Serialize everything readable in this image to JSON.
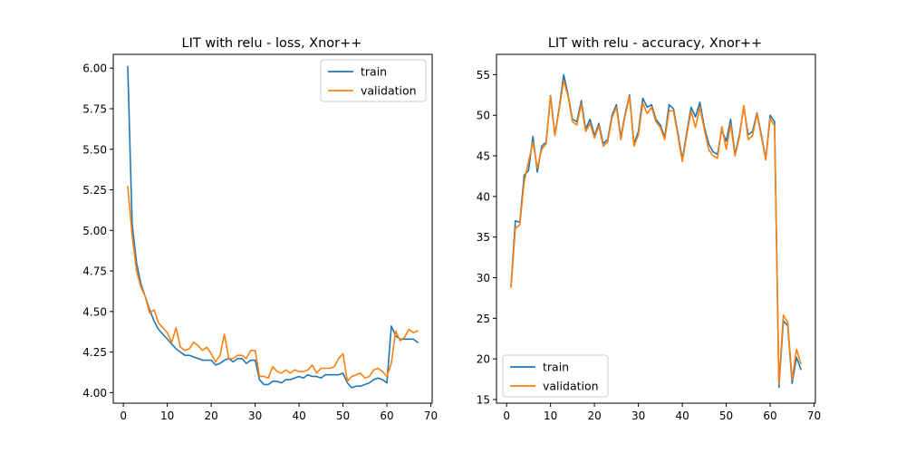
{
  "figure": {
    "background": "#ffffff"
  },
  "chart_data": [
    {
      "type": "line",
      "title": "LIT with relu - loss, Xnor++",
      "xlabel": "",
      "ylabel": "",
      "xlim": [
        -2.3,
        70.3
      ],
      "ylim": [
        3.935,
        6.085
      ],
      "xticks": [
        0,
        10,
        20,
        30,
        40,
        50,
        60,
        70
      ],
      "yticks": [
        4.0,
        4.25,
        4.5,
        4.75,
        5.0,
        5.25,
        5.5,
        5.75,
        6.0
      ],
      "ytick_labels": [
        "4.00",
        "4.25",
        "4.50",
        "4.75",
        "5.00",
        "5.25",
        "5.50",
        "5.75",
        "6.00"
      ],
      "grid": false,
      "legend_position": "upper right",
      "x": [
        1,
        2,
        3,
        4,
        5,
        6,
        7,
        8,
        9,
        10,
        11,
        12,
        13,
        14,
        15,
        16,
        17,
        18,
        19,
        20,
        21,
        22,
        23,
        24,
        25,
        26,
        27,
        28,
        29,
        30,
        31,
        32,
        33,
        34,
        35,
        36,
        37,
        38,
        39,
        40,
        41,
        42,
        43,
        44,
        45,
        46,
        47,
        48,
        49,
        50,
        51,
        52,
        53,
        54,
        55,
        56,
        57,
        58,
        59,
        60,
        61,
        62,
        63,
        64,
        65,
        66,
        67
      ],
      "series": [
        {
          "name": "train",
          "color": "#1f77b4",
          "values": [
            6.01,
            5.04,
            4.8,
            4.67,
            4.59,
            4.51,
            4.44,
            4.39,
            4.36,
            4.33,
            4.3,
            4.27,
            4.25,
            4.23,
            4.23,
            4.22,
            4.21,
            4.2,
            4.2,
            4.2,
            4.17,
            4.18,
            4.2,
            4.21,
            4.19,
            4.21,
            4.21,
            4.18,
            4.2,
            4.2,
            4.08,
            4.05,
            4.05,
            4.07,
            4.07,
            4.06,
            4.08,
            4.08,
            4.09,
            4.1,
            4.09,
            4.11,
            4.1,
            4.1,
            4.09,
            4.11,
            4.11,
            4.11,
            4.11,
            4.12,
            4.06,
            4.03,
            4.04,
            4.04,
            4.05,
            4.06,
            4.08,
            4.09,
            4.08,
            4.06,
            4.41,
            4.35,
            4.33,
            4.33,
            4.33,
            4.33,
            4.31
          ]
        },
        {
          "name": "validation",
          "color": "#ff7f0e",
          "values": [
            5.27,
            4.97,
            4.75,
            4.65,
            4.59,
            4.49,
            4.51,
            4.43,
            4.4,
            4.37,
            4.31,
            4.4,
            4.28,
            4.26,
            4.27,
            4.31,
            4.29,
            4.26,
            4.28,
            4.24,
            4.19,
            4.23,
            4.36,
            4.21,
            4.21,
            4.23,
            4.23,
            4.21,
            4.26,
            4.26,
            4.1,
            4.1,
            4.09,
            4.16,
            4.13,
            4.12,
            4.14,
            4.12,
            4.14,
            4.13,
            4.13,
            4.14,
            4.17,
            4.12,
            4.15,
            4.15,
            4.15,
            4.16,
            4.21,
            4.24,
            4.07,
            4.1,
            4.11,
            4.12,
            4.09,
            4.1,
            4.14,
            4.15,
            4.13,
            4.1,
            4.18,
            4.38,
            4.32,
            4.34,
            4.39,
            4.37,
            4.38
          ]
        }
      ]
    },
    {
      "type": "line",
      "title": "LIT with relu - accuracy, Xnor++",
      "xlabel": "",
      "ylabel": "",
      "xlim": [
        -2.3,
        70.3
      ],
      "ylim": [
        14.55,
        57.5
      ],
      "xticks": [
        0,
        10,
        20,
        30,
        40,
        50,
        60,
        70
      ],
      "yticks": [
        15,
        20,
        25,
        30,
        35,
        40,
        45,
        50,
        55
      ],
      "ytick_labels": [
        "15",
        "20",
        "25",
        "30",
        "35",
        "40",
        "45",
        "50",
        "55"
      ],
      "grid": false,
      "legend_position": "lower left",
      "x": [
        1,
        2,
        3,
        4,
        5,
        6,
        7,
        8,
        9,
        10,
        11,
        12,
        13,
        14,
        15,
        16,
        17,
        18,
        19,
        20,
        21,
        22,
        23,
        24,
        25,
        26,
        27,
        28,
        29,
        30,
        31,
        32,
        33,
        34,
        35,
        36,
        37,
        38,
        39,
        40,
        41,
        42,
        43,
        44,
        45,
        46,
        47,
        48,
        49,
        50,
        51,
        52,
        53,
        54,
        55,
        56,
        57,
        58,
        59,
        60,
        61,
        62,
        63,
        64,
        65,
        66,
        67
      ],
      "series": [
        {
          "name": "train",
          "color": "#1f77b4",
          "values": [
            29.0,
            37.0,
            36.8,
            42.6,
            43.2,
            47.4,
            43.0,
            46.2,
            46.7,
            52.4,
            47.6,
            51.0,
            55.0,
            52.5,
            49.5,
            49.2,
            51.8,
            48.3,
            49.5,
            47.5,
            49.0,
            46.5,
            47.0,
            50.0,
            51.3,
            47.3,
            50.2,
            52.5,
            46.5,
            48.0,
            52.1,
            51.0,
            51.3,
            49.5,
            48.8,
            47.3,
            51.3,
            50.8,
            47.8,
            44.6,
            47.8,
            51.0,
            49.8,
            51.6,
            48.6,
            46.5,
            45.5,
            45.2,
            48.2,
            46.8,
            49.5,
            45.2,
            47.6,
            51.0,
            47.6,
            48.0,
            50.3,
            47.6,
            44.6,
            50.0,
            49.2,
            16.5,
            24.7,
            24.1,
            17.0,
            20.2,
            18.7
          ]
        },
        {
          "name": "validation",
          "color": "#ff7f0e",
          "values": [
            28.8,
            36.1,
            36.5,
            41.8,
            44.3,
            46.7,
            43.5,
            45.8,
            46.5,
            52.3,
            47.5,
            50.8,
            54.3,
            52.3,
            49.2,
            48.8,
            51.4,
            48.0,
            49.0,
            47.2,
            48.7,
            46.2,
            46.7,
            49.7,
            51.0,
            47.0,
            50.0,
            52.3,
            46.2,
            47.6,
            51.5,
            50.2,
            51.0,
            49.2,
            48.5,
            47.0,
            50.6,
            50.5,
            47.5,
            44.3,
            47.5,
            50.5,
            48.5,
            51.0,
            48.3,
            45.8,
            45.0,
            44.7,
            48.6,
            45.8,
            48.9,
            45.0,
            47.3,
            51.2,
            47.0,
            47.5,
            50.2,
            47.3,
            44.5,
            49.6,
            48.7,
            16.9,
            25.4,
            24.5,
            17.4,
            21.2,
            19.4
          ]
        }
      ]
    }
  ]
}
